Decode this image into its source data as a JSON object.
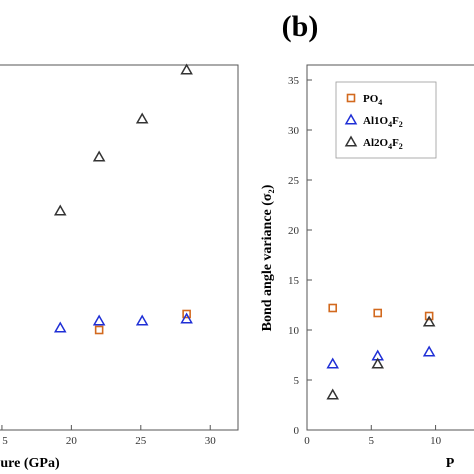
{
  "panel_label": "(b)",
  "colors": {
    "PO4": "#d2691e",
    "Al1O4F2": "#1f2fd6",
    "Al2O4F2": "#333333"
  },
  "chart_data": [
    {
      "type": "scatter",
      "title": "",
      "xlabel": "ure (GPa)",
      "ylabel": "",
      "xlim": [
        14.5,
        32
      ],
      "ylim": [
        0,
        36.5
      ],
      "x_ticks": [
        "5",
        "20",
        "25",
        "30"
      ],
      "grid": false,
      "series": [
        {
          "marker": "square",
          "color": "#d2691e",
          "points": [
            [
              22,
              10.0
            ],
            [
              28.3,
              11.6
            ]
          ]
        },
        {
          "marker": "triangle",
          "color": "#1f2fd6",
          "points": [
            [
              19.2,
              10.2
            ],
            [
              22,
              10.9
            ],
            [
              25.1,
              10.9
            ],
            [
              28.3,
              11.1
            ]
          ]
        },
        {
          "marker": "triangle",
          "color": "#333333",
          "points": [
            [
              19.2,
              21.9
            ],
            [
              22,
              27.3
            ],
            [
              25.1,
              31.1
            ],
            [
              28.3,
              36.0
            ]
          ]
        }
      ]
    },
    {
      "type": "scatter",
      "title": "",
      "xlabel": "P",
      "ylabel": "Bond angle variance (σ₂)",
      "xlim": [
        0,
        14
      ],
      "ylim": [
        0,
        36.5
      ],
      "y_ticks": [
        "0",
        "5",
        "10",
        "15",
        "20",
        "25",
        "30",
        "35"
      ],
      "x_ticks": [
        "0",
        "5",
        "10"
      ],
      "grid": false,
      "legend": "top-right",
      "series": [
        {
          "name": "PO4",
          "label_main": "PO",
          "label_sub": "4",
          "marker": "square",
          "color": "#d2691e",
          "x": [
            2,
            5.5,
            9.5
          ],
          "y": [
            12.2,
            11.7,
            11.4
          ]
        },
        {
          "name": "Al1O4F2",
          "label_main": "Al1O",
          "label_sub": "4",
          "label_main2": "F",
          "label_sub2": "2",
          "marker": "triangle",
          "color": "#1f2fd6",
          "x": [
            2,
            5.5,
            9.5
          ],
          "y": [
            6.6,
            7.4,
            7.8
          ]
        },
        {
          "name": "Al2O4F2",
          "label_main": "Al2O",
          "label_sub": "4",
          "label_main2": "F",
          "label_sub2": "2",
          "marker": "triangle",
          "color": "#333333",
          "x": [
            2,
            5.5,
            9.5
          ],
          "y": [
            3.5,
            6.6,
            10.8
          ]
        }
      ]
    }
  ]
}
